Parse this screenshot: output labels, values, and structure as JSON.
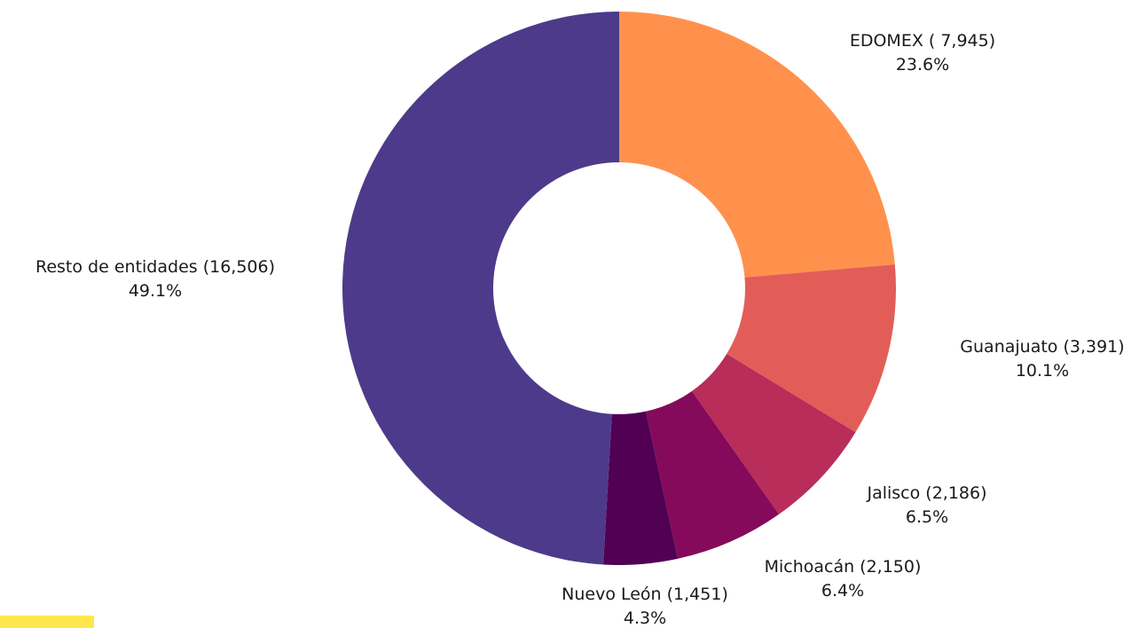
{
  "chart_data": {
    "type": "pie",
    "variant": "donut",
    "title": "",
    "start_angle_deg": 0,
    "direction": "clockwise",
    "slices": [
      {
        "label": "EDOMEX ( 7,945)",
        "value": 7945,
        "percent_text": "23.6%",
        "percent": 23.6,
        "color": "#FF914D"
      },
      {
        "label": "Guanajuato (3,391)",
        "value": 3391,
        "percent_text": "10.1%",
        "percent": 10.1,
        "color": "#E35D58"
      },
      {
        "label": "Jalisco (2,186)",
        "value": 2186,
        "percent_text": "6.5%",
        "percent": 6.5,
        "color": "#B82D5A"
      },
      {
        "label": "Michoacán (2,150)",
        "value": 2150,
        "percent_text": "6.4%",
        "percent": 6.4,
        "color": "#850A5B"
      },
      {
        "label": "Nuevo León (1,451)",
        "value": 1451,
        "percent_text": "4.3%",
        "percent": 4.3,
        "color": "#510053"
      },
      {
        "label": "Resto de entidades (16,506)",
        "value": 16506,
        "percent_text": "49.1%",
        "percent": 49.1,
        "color": "#4D3A8A"
      }
    ]
  },
  "colors": {
    "background": "#FFFFFF",
    "label_text": "#1A1A1A",
    "accent_bar": "#FDE74C"
  }
}
